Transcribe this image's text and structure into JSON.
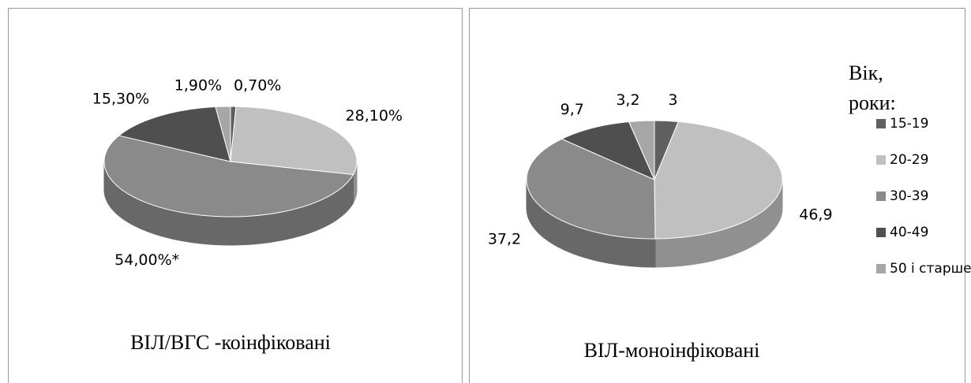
{
  "chart_data": [
    {
      "type": "pie3d",
      "title": "ВІЛ/ВГС -коінфіковані",
      "values": [
        0.7,
        28.1,
        54.0,
        15.3,
        1.9
      ],
      "value_labels": [
        "0,70%",
        "28,10%",
        "54,00%*",
        "15,30%",
        "1,90%"
      ],
      "colors": [
        "#5f5f5f",
        "#c0c0c0",
        "#8a8a8a",
        "#4f4f4f",
        "#a6a6a6"
      ]
    },
    {
      "type": "pie3d",
      "title": "ВІЛ-моноінфіковані",
      "categories": [
        "15-19",
        "20-29",
        "30-39",
        "40-49",
        "50 і старше"
      ],
      "values": [
        3,
        46.9,
        37.2,
        9.7,
        3.2
      ],
      "value_labels": [
        "3",
        "46,9",
        "37,2",
        "9,7",
        "3,2"
      ],
      "colors": [
        "#5f5f5f",
        "#c0c0c0",
        "#8a8a8a",
        "#4f4f4f",
        "#a6a6a6"
      ],
      "legend": "right",
      "legend_title": [
        "Вік,",
        "роки:"
      ]
    }
  ]
}
